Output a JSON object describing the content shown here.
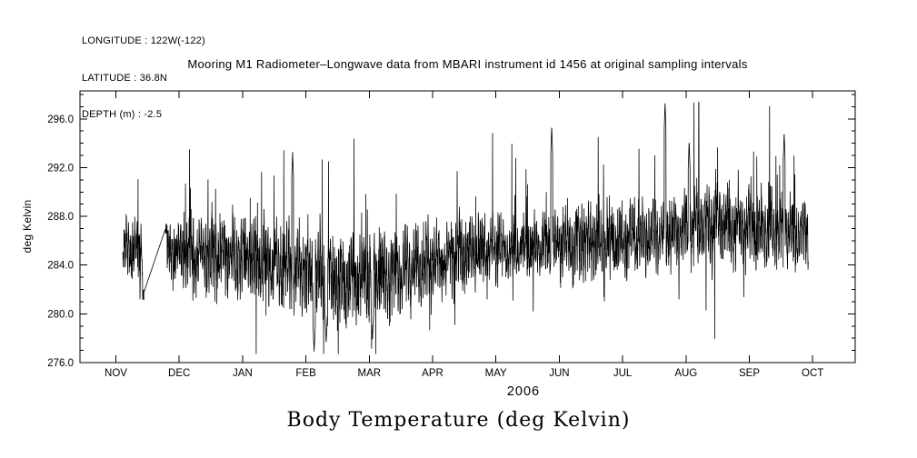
{
  "meta": {
    "longitude_line": "LONGITUDE : 122W(-122)",
    "latitude_line": "LATITUDE : 36.8N",
    "depth_line": "DEPTH (m) : -2.5"
  },
  "title": "Mooring M1 Radiometer–Longwave data from MBARI instrument id 1456 at original sampling intervals",
  "caption": "Body Temperature (deg Kelvin)",
  "axes": {
    "ylabel": "deg Kelvin",
    "year_label": "2006",
    "y_ticks": [
      276.0,
      280.0,
      284.0,
      288.0,
      292.0,
      296.0
    ],
    "y_minor_step": 1,
    "month_labels": [
      "NOV",
      "DEC",
      "JAN",
      "FEB",
      "MAR",
      "APR",
      "MAY",
      "JUN",
      "JUL",
      "AUG",
      "SEP",
      "OCT"
    ]
  },
  "chart_data": {
    "type": "line",
    "title": "Mooring M1 Radiometer–Longwave data from MBARI instrument id 1456 at original sampling intervals",
    "xlabel": "2006",
    "ylabel": "deg Kelvin",
    "ylim": [
      276.0,
      298.3
    ],
    "x_categories": [
      "NOV",
      "DEC",
      "JAN",
      "FEB",
      "MAR",
      "APR",
      "MAY",
      "JUN",
      "JUL",
      "AUG",
      "SEP",
      "OCT"
    ],
    "t_range": [
      0.11,
      10.93
    ],
    "data_gap": {
      "start": 0.45,
      "end": 0.78
    },
    "series": [
      {
        "name": "Body Temperature (deg Kelvin)",
        "monthly_envelope": [
          {
            "month": "NOV",
            "mean": 285.3,
            "min": 280.2,
            "max": 290.3
          },
          {
            "month": "DEC",
            "mean": 285.0,
            "min": 279.5,
            "max": 292.3
          },
          {
            "month": "JAN",
            "mean": 284.3,
            "min": 279.0,
            "max": 292.5
          },
          {
            "month": "FEB",
            "mean": 282.8,
            "min": 276.8,
            "max": 293.3
          },
          {
            "month": "MAR",
            "mean": 283.4,
            "min": 277.5,
            "max": 290.5
          },
          {
            "month": "APR",
            "mean": 285.0,
            "min": 280.5,
            "max": 292.3
          },
          {
            "month": "MAY",
            "mean": 285.4,
            "min": 281.5,
            "max": 291.0
          },
          {
            "month": "JUN",
            "mean": 285.9,
            "min": 282.0,
            "max": 295.4
          },
          {
            "month": "JUL",
            "mean": 286.4,
            "min": 282.5,
            "max": 294.0
          },
          {
            "month": "AUG",
            "mean": 287.4,
            "min": 283.0,
            "max": 297.3
          },
          {
            "month": "SEP",
            "mean": 286.6,
            "min": 283.0,
            "max": 294.9
          },
          {
            "month": "OCT",
            "mean": 287.0,
            "min": 283.5,
            "max": 294.8
          }
        ]
      }
    ],
    "notable_extremes": {
      "highs": [
        {
          "t": 2.79,
          "value": 293.3
        },
        {
          "t": 6.88,
          "value": 295.4
        },
        {
          "t": 8.67,
          "value": 297.3
        },
        {
          "t": 9.05,
          "value": 294.2
        },
        {
          "t": 10.55,
          "value": 294.9
        }
      ],
      "lows": [
        {
          "t": 3.13,
          "value": 276.9
        },
        {
          "t": 3.32,
          "value": 277.6
        },
        {
          "t": 4.05,
          "value": 277.9
        }
      ]
    }
  }
}
